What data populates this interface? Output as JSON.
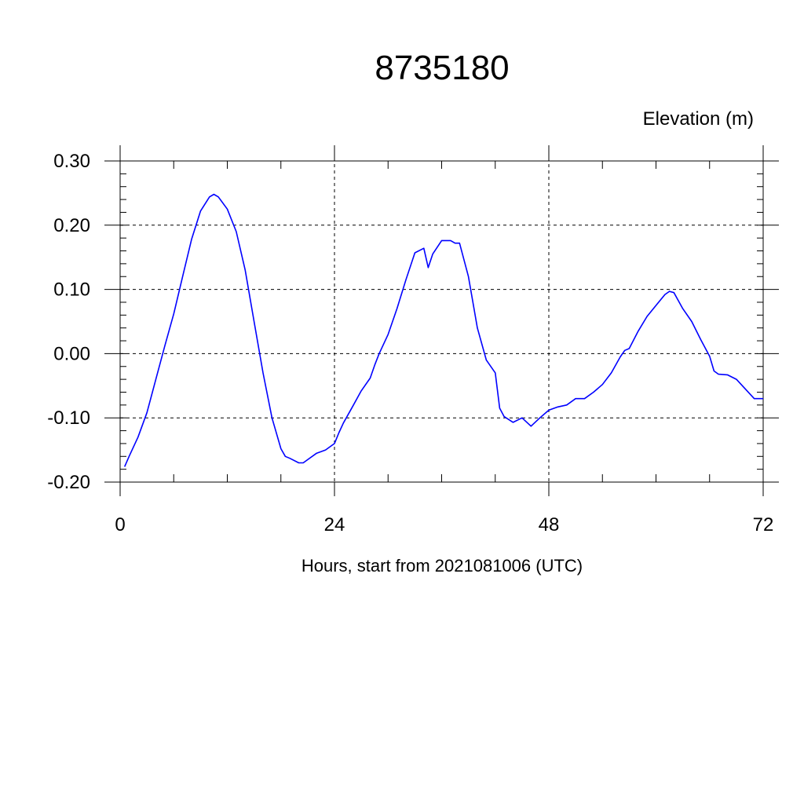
{
  "chart_data": {
    "type": "line",
    "title": "8735180",
    "ylabel": "Elevation (m)",
    "xlabel": "Hours, start from 2021081006 (UTC)",
    "xlim": [
      0,
      72
    ],
    "ylim": [
      -0.2,
      0.3
    ],
    "xticks": [
      0,
      24,
      48,
      72
    ],
    "xtick_labels": [
      "0",
      "24",
      "48",
      "72"
    ],
    "yticks": [
      -0.2,
      -0.1,
      0.0,
      0.1,
      0.2,
      0.3
    ],
    "ytick_labels": [
      "-0.20",
      "-0.10",
      "0.00",
      "0.10",
      "0.20",
      "0.30"
    ],
    "grid": "dashed at major ticks",
    "line_color": "#0000ff",
    "series": [
      {
        "x": [
          0.5,
          1,
          2,
          3,
          4,
          5,
          6,
          7,
          8,
          9,
          10,
          10.5,
          11,
          12,
          13,
          14,
          15,
          16,
          17,
          18,
          18.5,
          19,
          20,
          20.5,
          21,
          22,
          23,
          24,
          24.5,
          25,
          26,
          27,
          28,
          28.5,
          29,
          30,
          31,
          32,
          33,
          34,
          34.5,
          35,
          36,
          37,
          37.5,
          38,
          39,
          40,
          41,
          42,
          42.5,
          43,
          44,
          45,
          46,
          47,
          48,
          49,
          50,
          51,
          52,
          53,
          54,
          55,
          56,
          56.5,
          57,
          58,
          59,
          60,
          61,
          61.5,
          62,
          63,
          64,
          65,
          66,
          66.5,
          67,
          68,
          69,
          70,
          71,
          72
        ],
        "y": [
          -0.176,
          -0.16,
          -0.13,
          -0.092,
          -0.04,
          0.012,
          0.062,
          0.12,
          0.178,
          0.222,
          0.244,
          0.248,
          0.244,
          0.225,
          0.19,
          0.13,
          0.05,
          -0.03,
          -0.1,
          -0.148,
          -0.16,
          -0.163,
          -0.17,
          -0.17,
          -0.165,
          -0.155,
          -0.15,
          -0.14,
          -0.123,
          -0.108,
          -0.083,
          -0.058,
          -0.038,
          -0.018,
          0.0,
          0.03,
          0.07,
          0.115,
          0.157,
          0.164,
          0.134,
          0.155,
          0.176,
          0.176,
          0.172,
          0.172,
          0.12,
          0.04,
          -0.01,
          -0.03,
          -0.085,
          -0.098,
          -0.107,
          -0.1,
          -0.113,
          -0.1,
          -0.088,
          -0.083,
          -0.08,
          -0.07,
          -0.07,
          -0.06,
          -0.048,
          -0.03,
          -0.005,
          0.005,
          0.008,
          0.035,
          0.058,
          0.075,
          0.092,
          0.097,
          0.095,
          0.07,
          0.05,
          0.022,
          -0.004,
          -0.027,
          -0.032,
          -0.033,
          -0.04,
          -0.055,
          -0.07,
          -0.07
        ]
      }
    ]
  }
}
